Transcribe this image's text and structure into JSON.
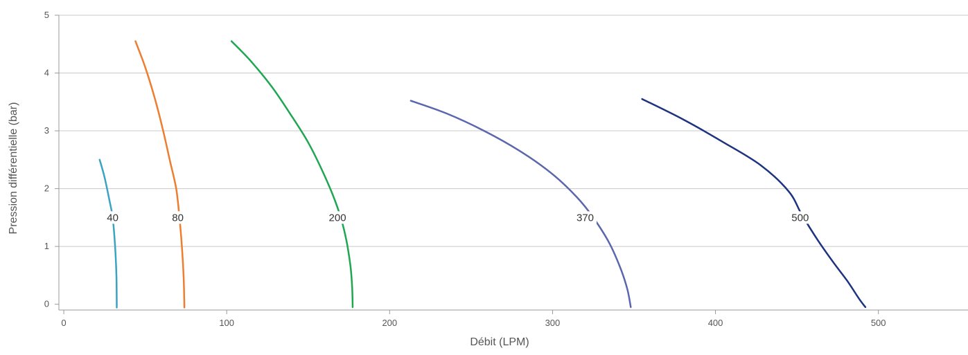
{
  "chart_data": {
    "type": "line",
    "title": "",
    "xlabel": "Débit (LPM)",
    "ylabel": "Pression différentielle (bar)",
    "xlim": [
      -3,
      555
    ],
    "ylim": [
      -0.1,
      5
    ],
    "x_ticks": [
      0,
      100,
      200,
      300,
      400,
      500
    ],
    "y_ticks": [
      0,
      1,
      2,
      3,
      4,
      5
    ],
    "grid": "horizontal",
    "series": [
      {
        "name": "40",
        "color": "#3aa3c3",
        "label_at": [
          30,
          1.5
        ],
        "points": [
          [
            22,
            2.5
          ],
          [
            25,
            2.2
          ],
          [
            28,
            1.8
          ],
          [
            30,
            1.5
          ],
          [
            31.5,
            1.0
          ],
          [
            32.3,
            0.5
          ],
          [
            32.5,
            0.0
          ],
          [
            32.5,
            -0.05
          ]
        ]
      },
      {
        "name": "80",
        "color": "#ee7d2f",
        "label_at": [
          70,
          1.5
        ],
        "points": [
          [
            44,
            4.55
          ],
          [
            50,
            4.1
          ],
          [
            56,
            3.55
          ],
          [
            61,
            3.0
          ],
          [
            65,
            2.5
          ],
          [
            69,
            2.0
          ],
          [
            71,
            1.5
          ],
          [
            72.5,
            1.0
          ],
          [
            73.5,
            0.5
          ],
          [
            74,
            0.0
          ],
          [
            74,
            -0.05
          ]
        ]
      },
      {
        "name": "200",
        "color": "#1ea651",
        "label_at": [
          168,
          1.5
        ],
        "points": [
          [
            103,
            4.55
          ],
          [
            115,
            4.2
          ],
          [
            128,
            3.75
          ],
          [
            140,
            3.25
          ],
          [
            150,
            2.8
          ],
          [
            158,
            2.35
          ],
          [
            165,
            1.9
          ],
          [
            170,
            1.5
          ],
          [
            173.5,
            1.1
          ],
          [
            176,
            0.65
          ],
          [
            177,
            0.3
          ],
          [
            177.3,
            0.0
          ],
          [
            177.3,
            -0.05
          ]
        ]
      },
      {
        "name": "370",
        "color": "#5b67ad",
        "label_at": [
          320,
          1.5
        ],
        "points": [
          [
            213,
            3.52
          ],
          [
            235,
            3.3
          ],
          [
            258,
            3.0
          ],
          [
            280,
            2.65
          ],
          [
            300,
            2.25
          ],
          [
            315,
            1.85
          ],
          [
            325,
            1.5
          ],
          [
            335,
            1.05
          ],
          [
            342,
            0.6
          ],
          [
            346,
            0.25
          ],
          [
            348,
            -0.05
          ]
        ]
      },
      {
        "name": "500",
        "color": "#1d3380",
        "label_at": [
          452,
          1.5
        ],
        "points": [
          [
            355,
            3.55
          ],
          [
            380,
            3.2
          ],
          [
            405,
            2.8
          ],
          [
            428,
            2.4
          ],
          [
            445,
            1.95
          ],
          [
            453,
            1.55
          ],
          [
            463,
            1.1
          ],
          [
            473,
            0.7
          ],
          [
            481,
            0.4
          ],
          [
            488,
            0.1
          ],
          [
            492,
            -0.05
          ]
        ]
      }
    ]
  }
}
